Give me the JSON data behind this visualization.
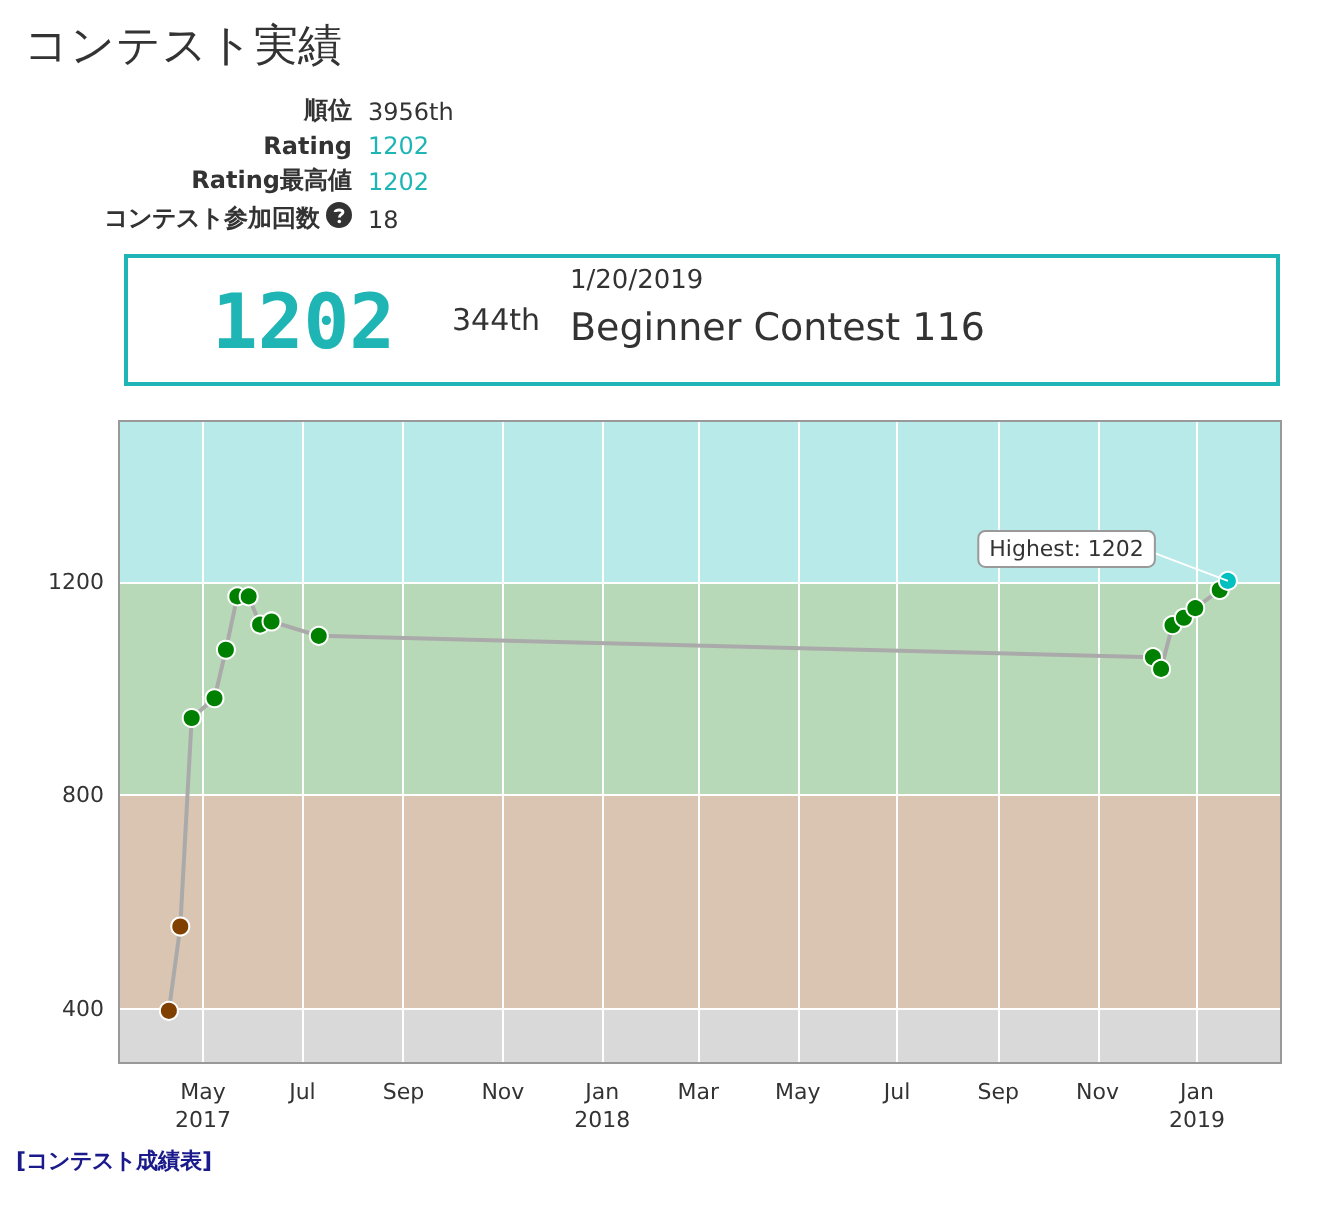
{
  "chart_data": {
    "type": "line",
    "title": "コンテスト実績",
    "annotations": [
      "順位",
      "3956th",
      "Rating",
      "1202",
      "Rating最高値",
      "1202",
      "コンテスト参加回数",
      "18",
      "1202",
      "344th",
      "1/20/2019",
      "Beginner Contest 116",
      "[コンテスト成績表]",
      {
        "text": "Highest: 1202",
        "x": "2019-01-20",
        "y": 1202
      }
    ],
    "x": [
      "2017-04-10",
      "2017-04-17",
      "2017-04-24",
      "2017-05-08",
      "2017-05-15",
      "2017-05-22",
      "2017-05-29",
      "2017-06-05",
      "2017-06-12",
      "2017-07-11",
      "2018-12-05",
      "2018-12-10",
      "2018-12-17",
      "2018-12-24",
      "2018-12-31",
      "2019-01-15",
      "2019-01-20"
    ],
    "series": [
      {
        "color": "#aaaaaa",
        "colors": [
          "#804000",
          "#804000",
          "#008000",
          "#008000",
          "#008000",
          "#008000",
          "#008000",
          "#008000",
          "#008000",
          "#008000",
          "#008000",
          "#008000",
          "#008000",
          "#008000",
          "#008000",
          "#008000",
          "#00c0c0"
        ],
        "values": [
          396,
          554,
          945,
          982,
          1073,
          1173,
          1173,
          1120,
          1126,
          1099,
          1059,
          1037,
          1119,
          1133,
          1151,
          1185,
          1202
        ]
      }
    ],
    "xlim": [
      "2017-03-11",
      "2019-02-21"
    ],
    "xticks": [
      {
        "value": "2017-05",
        "label": "May\n2017"
      },
      {
        "value": "2017-07",
        "label": "Jul"
      },
      {
        "value": "2017-09",
        "label": "Sep"
      },
      {
        "value": "2017-11",
        "label": "Nov"
      },
      {
        "value": "2018-01",
        "label": "Jan\n2018"
      },
      {
        "value": "2018-03",
        "label": "Mar"
      },
      {
        "value": "2018-05",
        "label": "May"
      },
      {
        "value": "2018-07",
        "label": "Jul"
      },
      {
        "value": "2018-09",
        "label": "Sep"
      },
      {
        "value": "2018-11",
        "label": "Nov"
      },
      {
        "value": "2019-01",
        "label": "Jan\n2019"
      }
    ],
    "ylim": [
      300,
      1500
    ],
    "yticks": [
      400,
      800,
      1200
    ],
    "bands": [
      {
        "axis": "y",
        "from": 300,
        "to": 400,
        "color": "#d9d9d9"
      },
      {
        "axis": "y",
        "from": 400,
        "to": 800,
        "color": "#d9c5b2"
      },
      {
        "axis": "y",
        "from": 800,
        "to": 1200,
        "color": "#b8d9b8"
      },
      {
        "axis": "y",
        "from": 1200,
        "to": 1500,
        "color": "#b9eaea"
      }
    ],
    "grid": true,
    "marker": "circle",
    "line_style": "solid"
  }
}
